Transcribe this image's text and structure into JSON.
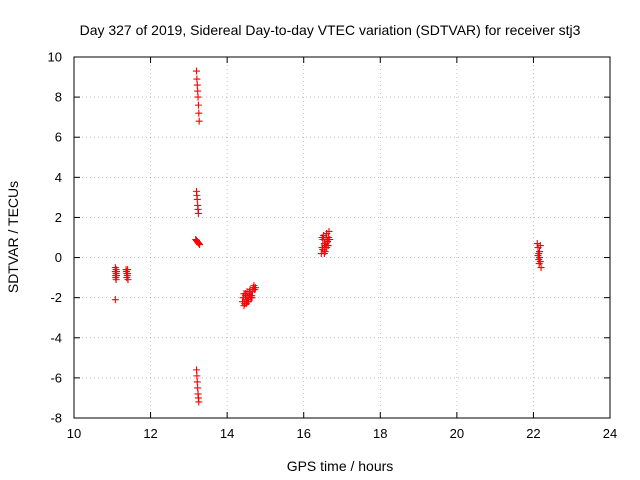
{
  "chart_data": {
    "type": "scatter",
    "title": "Day 327 of 2019, Sidereal Day-to-day VTEC variation (SDTVAR) for receiver stj3",
    "xlabel": "GPS time / hours",
    "ylabel": "SDTVAR / TECUs",
    "xlim": [
      10,
      24
    ],
    "ylim": [
      -8,
      10
    ],
    "xticks": [
      10,
      12,
      14,
      16,
      18,
      20,
      22,
      24
    ],
    "xtick_labels": [
      "10",
      "12",
      "14",
      "16",
      "18",
      "20",
      "22",
      "24"
    ],
    "yticks": [
      -8,
      -6,
      -4,
      -2,
      0,
      2,
      4,
      6,
      8,
      10
    ],
    "ytick_labels": [
      "-8",
      "-6",
      "-4",
      "-2",
      "0",
      "2",
      "4",
      "6",
      "8",
      "10"
    ],
    "grid": true,
    "marker": "+",
    "series": [
      {
        "color": "#ff0000",
        "x": [
          11.08,
          11.08,
          11.09,
          11.09,
          11.1,
          11.1,
          11.1,
          11.11,
          11.11,
          11.08,
          11.36,
          11.37,
          11.38,
          11.38,
          11.39,
          11.4,
          11.4,
          11.41,
          13.2,
          13.21,
          13.22,
          13.23,
          13.24,
          13.25,
          13.26,
          13.27,
          13.2,
          13.21,
          13.22,
          13.23,
          13.24,
          13.25,
          13.18,
          13.2,
          13.22,
          13.24,
          13.26,
          13.28,
          13.2,
          13.21,
          13.22,
          13.23,
          13.24,
          13.25,
          13.26,
          14.4,
          14.42,
          14.44,
          14.46,
          14.48,
          14.5,
          14.52,
          14.54,
          14.56,
          14.58,
          14.6,
          14.62,
          14.64,
          14.66,
          14.68,
          14.7,
          14.72,
          14.74,
          14.44,
          14.5,
          14.55,
          14.6,
          14.65,
          14.48,
          14.53,
          14.58,
          16.46,
          16.48,
          16.5,
          16.52,
          16.54,
          16.56,
          16.58,
          16.6,
          16.62,
          16.64,
          16.66,
          16.68,
          16.5,
          16.55,
          16.6,
          16.65,
          16.52,
          16.58,
          16.62,
          16.48,
          16.54,
          16.6,
          22.1,
          22.12,
          22.14,
          22.16,
          22.18,
          22.2,
          22.12,
          22.15,
          22.18,
          22.14,
          22.16
        ],
        "y": [
          -0.5,
          -0.7,
          -0.9,
          -1.0,
          -0.6,
          -0.8,
          -1.1,
          -0.7,
          -0.9,
          -2.1,
          -0.6,
          -0.7,
          -0.8,
          -1.0,
          -0.9,
          -0.6,
          -0.8,
          -1.1,
          9.3,
          8.9,
          8.6,
          8.3,
          8.0,
          7.6,
          7.2,
          6.8,
          3.3,
          3.1,
          2.9,
          2.6,
          2.4,
          2.2,
          0.9,
          0.85,
          0.8,
          0.75,
          0.7,
          0.65,
          -5.6,
          -5.9,
          -6.2,
          -6.5,
          -6.8,
          -7.0,
          -7.2,
          -2.2,
          -2.0,
          -1.8,
          -2.3,
          -1.9,
          -2.1,
          -1.7,
          -2.0,
          -2.2,
          -1.8,
          -1.6,
          -2.0,
          -1.9,
          -1.7,
          -1.5,
          -1.4,
          -1.6,
          -1.5,
          -2.4,
          -2.3,
          -2.1,
          -1.9,
          -2.0,
          -1.8,
          -2.2,
          -1.7,
          0.2,
          0.5,
          0.9,
          1.1,
          0.7,
          0.3,
          1.0,
          1.2,
          0.8,
          0.6,
          1.3,
          0.9,
          0.4,
          0.6,
          0.5,
          1.0,
          1.1,
          0.7,
          0.8,
          1.0,
          0.2,
          1.2,
          0.7,
          0.5,
          0.2,
          0.0,
          -0.2,
          -0.5,
          0.1,
          -0.3,
          0.6,
          -0.1,
          0.3
        ]
      }
    ]
  }
}
